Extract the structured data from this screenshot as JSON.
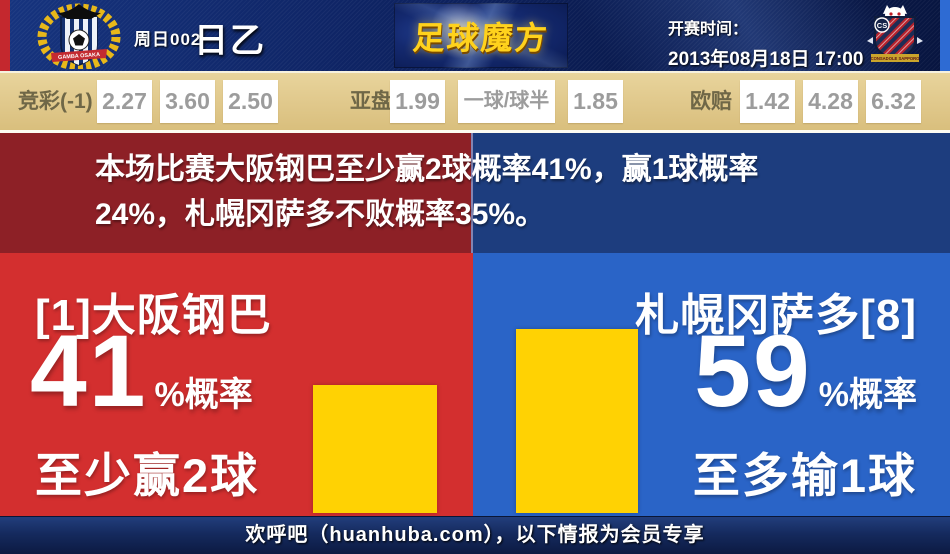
{
  "header": {
    "match_no": "周日002",
    "league": "日乙",
    "site_logo": "足球魔方",
    "kickoff_label": "开赛时间：",
    "kickoff_time": "2013年08月18日 17:00",
    "home_crest_text": "GAMBA OSAKA",
    "away_crest_text": "CONSADOLE SAPPORO",
    "away_crest_initials": "CS"
  },
  "odds": {
    "jingcai": {
      "label": "竞彩(-1)",
      "values": [
        "2.27",
        "3.60",
        "2.50"
      ]
    },
    "yapan": {
      "label": "亚盘",
      "values": [
        "1.99",
        "一球/球半",
        "1.85"
      ]
    },
    "oupei": {
      "label": "欧赔",
      "values": [
        "1.42",
        "4.28",
        "6.32"
      ]
    }
  },
  "banner": {
    "line1": "本场比赛大阪钢巴至少赢2球概率41%，赢1球概率",
    "line2": "24%，札幌冈萨多不败概率35%。"
  },
  "left_panel": {
    "team": "[1]大阪钢巴",
    "probability": "41",
    "prob_suffix": "%概率",
    "outcome": "至少赢2球",
    "probability_pct": 41
  },
  "right_panel": {
    "team": "札幌冈萨多[8]",
    "probability": "59",
    "prob_suffix": "%概率",
    "outcome": "至多输1球",
    "probability_pct": 59
  },
  "footer": {
    "text": "欢呼吧（huanhuba.com），以下情报为会员专享"
  },
  "colors": {
    "bright_red": "#d32f2f",
    "bright_blue": "#2a64c7",
    "dark_red": "#8d2026",
    "dark_blue": "#1d3d7e",
    "bar_yellow": "#ffd203",
    "odds_bg": "#e0c88b",
    "logo_gold": "#ffd21c",
    "odds_number_gray": "#9c9c9c"
  }
}
